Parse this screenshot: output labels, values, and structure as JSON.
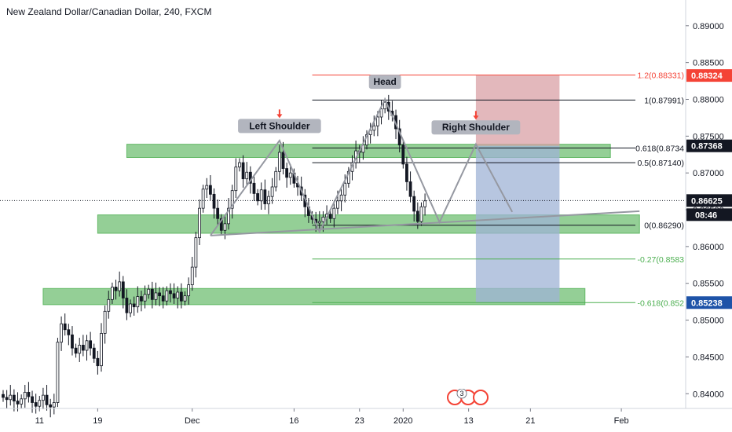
{
  "title": "New Zealand Dollar/Canadian Dollar, 240, FXCM",
  "chart_data": {
    "type": "candlestick",
    "ylim": [
      0.838,
      0.8935
    ],
    "y_ticks": [
      "0.84000",
      "0.84500",
      "0.85000",
      "0.85500",
      "0.86000",
      "0.86500",
      "0.87000",
      "0.87500",
      "0.88000",
      "0.88500",
      "0.89000"
    ],
    "x_ticks": [
      {
        "label": "11",
        "idx": 10
      },
      {
        "label": "19",
        "idx": 26
      },
      {
        "label": "Dec",
        "idx": 52
      },
      {
        "label": "16",
        "idx": 80
      },
      {
        "label": "23",
        "idx": 98
      },
      {
        "label": "2020",
        "idx": 110
      },
      {
        "label": "13",
        "idx": 128
      },
      {
        "label": "21",
        "idx": 145
      },
      {
        "label": "Feb",
        "idx": 170
      }
    ],
    "current_price": "0.86625",
    "countdown": "08:46",
    "price_tags": [
      {
        "label": "0.88324",
        "value": 0.88324,
        "color": "#f44336"
      },
      {
        "label": "0.87368",
        "value": 0.87368,
        "color": "#131722"
      },
      {
        "label": "0.86625",
        "value": 0.86625,
        "color": "#131722"
      },
      {
        "label": "0.85238",
        "value": 0.85238,
        "color": "#1e53a8"
      }
    ],
    "fib_levels": [
      {
        "label": "1.2(0.88331)",
        "value": 0.88331,
        "color": "#f44336"
      },
      {
        "label": "1(0.87991)",
        "value": 0.87991,
        "color": "#131722"
      },
      {
        "label": "0.618(0.8734",
        "value": 0.8734,
        "color": "#131722"
      },
      {
        "label": "0.5(0.87140)",
        "value": 0.8714,
        "color": "#131722"
      },
      {
        "label": "0(0.86290)",
        "value": 0.8629,
        "color": "#131722"
      },
      {
        "label": "-0.27(0.8583",
        "value": 0.8583,
        "color": "#4caf50"
      },
      {
        "label": "-0.618(0.852",
        "value": 0.85238,
        "color": "#4caf50"
      }
    ],
    "zones": [
      {
        "from_idx": 34,
        "to_idx": 167,
        "high": 0.8739,
        "low": 0.8721
      },
      {
        "from_idx": 26,
        "to_idx": 175,
        "high": 0.8643,
        "low": 0.8618
      },
      {
        "from_idx": 11,
        "to_idx": 160,
        "high": 0.8543,
        "low": 0.8521
      }
    ],
    "callouts": [
      {
        "label": "Left Shoulder",
        "idx": 76,
        "value": 0.875,
        "arrow": true
      },
      {
        "label": "Head",
        "idx": 105,
        "value": 0.881,
        "arrow": false
      },
      {
        "label": "Right Shoulder",
        "idx": 130,
        "value": 0.8748,
        "arrow": true
      }
    ],
    "pattern_path": [
      {
        "idx": 57,
        "value": 0.8615
      },
      {
        "idx": 76,
        "value": 0.8744
      },
      {
        "idx": 87,
        "value": 0.862
      },
      {
        "idx": 105,
        "value": 0.88
      },
      {
        "idx": 120,
        "value": 0.8633
      },
      {
        "idx": 130,
        "value": 0.8739
      },
      {
        "idx": 140,
        "value": 0.8647
      }
    ],
    "neckline": [
      {
        "idx": 57,
        "value": 0.8615
      },
      {
        "idx": 175,
        "value": 0.8648
      }
    ],
    "position": {
      "from_idx": 130,
      "to_idx": 153,
      "entry": 0.87368,
      "target": 0.85238,
      "stop": 0.88324
    },
    "event_badge": "3",
    "closes": [
      0.8395,
      0.8392,
      0.8398,
      0.839,
      0.8386,
      0.8393,
      0.8402,
      0.8396,
      0.8388,
      0.8383,
      0.8391,
      0.8398,
      0.8385,
      0.8382,
      0.8388,
      0.847,
      0.8495,
      0.8487,
      0.848,
      0.8462,
      0.8455,
      0.8466,
      0.8459,
      0.8472,
      0.8462,
      0.8448,
      0.8438,
      0.8482,
      0.8512,
      0.8528,
      0.8545,
      0.854,
      0.8552,
      0.853,
      0.851,
      0.8522,
      0.8518,
      0.8532,
      0.8526,
      0.8535,
      0.8542,
      0.8528,
      0.8537,
      0.8533,
      0.8526,
      0.854,
      0.8536,
      0.853,
      0.8538,
      0.8526,
      0.8533,
      0.8548,
      0.8572,
      0.8612,
      0.8652,
      0.8678,
      0.8683,
      0.8671,
      0.8652,
      0.8638,
      0.8622,
      0.8631,
      0.8652,
      0.8676,
      0.8708,
      0.8714,
      0.8692,
      0.8701,
      0.8686,
      0.8672,
      0.8662,
      0.8677,
      0.8658,
      0.8668,
      0.8681,
      0.8702,
      0.8728,
      0.8706,
      0.8694,
      0.87,
      0.8686,
      0.8681,
      0.867,
      0.8654,
      0.8642,
      0.8637,
      0.8632,
      0.8634,
      0.864,
      0.8644,
      0.8638,
      0.8652,
      0.8662,
      0.867,
      0.8686,
      0.8702,
      0.8714,
      0.873,
      0.8728,
      0.8738,
      0.8752,
      0.8758,
      0.8764,
      0.8776,
      0.8787,
      0.8796,
      0.8784,
      0.8778,
      0.876,
      0.8738,
      0.8712,
      0.8688,
      0.8668,
      0.8648,
      0.8634,
      0.8654,
      0.8662
    ]
  }
}
